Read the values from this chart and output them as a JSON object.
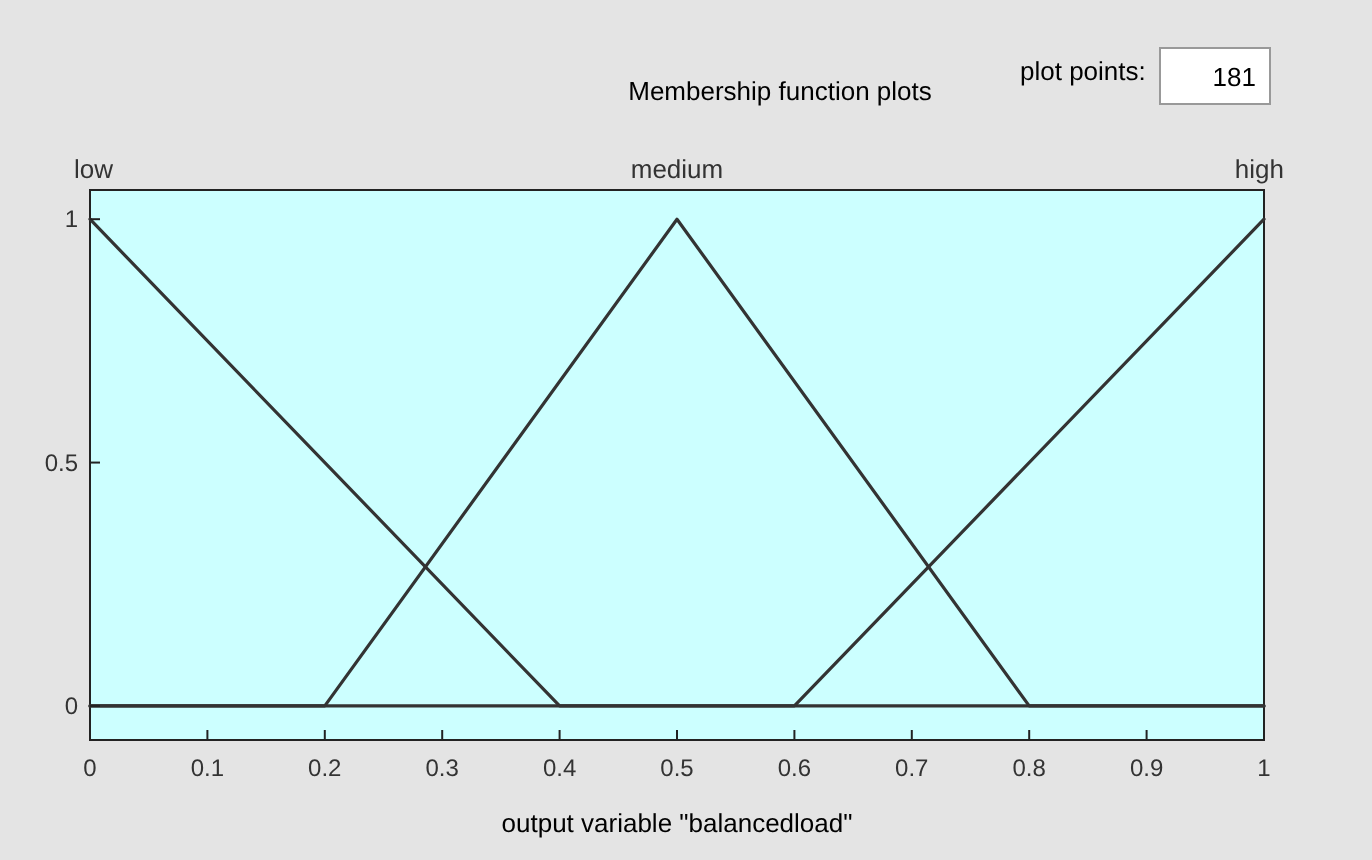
{
  "chart_data": {
    "type": "line",
    "title": "Membership function plots",
    "xlabel": "output variable \"balancedload\"",
    "annotations": [
      "plot points:",
      "181"
    ],
    "xlim": [
      0,
      1
    ],
    "ylim": [
      -0.07,
      1.06
    ],
    "xticks": [
      0,
      0.1,
      0.2,
      0.3,
      0.4,
      0.5,
      0.6,
      0.7,
      0.8,
      0.9,
      1
    ],
    "yticks": [
      0,
      0.5,
      1
    ],
    "grid": false,
    "legend": false,
    "line_style": "solid",
    "series": [
      {
        "name": "low",
        "color": "#333333",
        "x": [
          0,
          0.4,
          1
        ],
        "values": [
          1,
          0,
          0
        ]
      },
      {
        "name": "medium",
        "color": "#333333",
        "x": [
          0,
          0.2,
          0.5,
          0.8,
          1
        ],
        "values": [
          0,
          0,
          1,
          0,
          0
        ]
      },
      {
        "name": "high",
        "color": "#333333",
        "x": [
          0,
          0.6,
          1
        ],
        "values": [
          0,
          0,
          1
        ]
      }
    ]
  }
}
